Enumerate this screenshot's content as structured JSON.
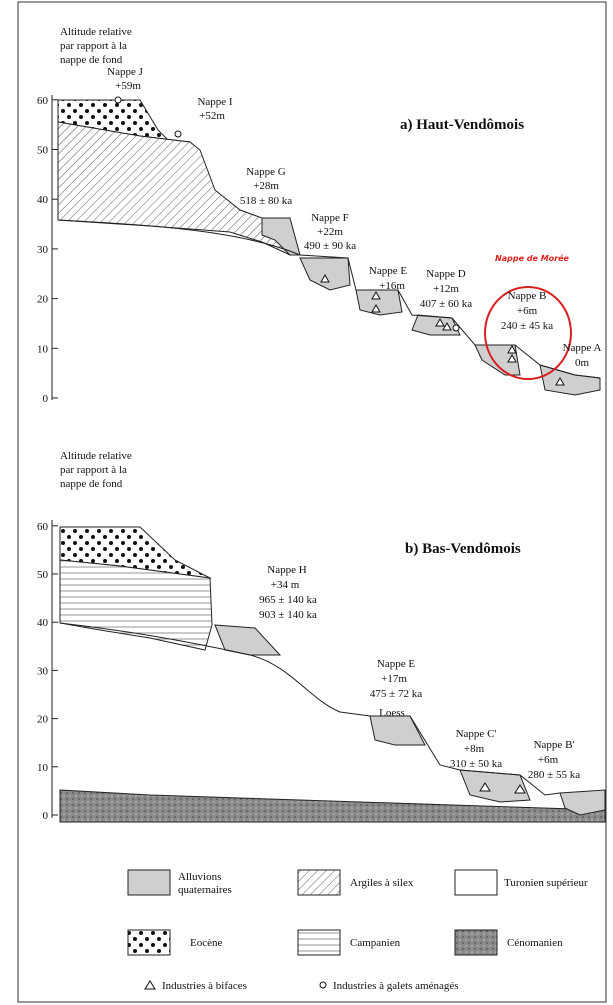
{
  "panels": [
    {
      "axis_label": [
        "Altitude relative",
        "par rapport à la",
        "nappe de fond"
      ],
      "title": "a) Haut-Vendômois",
      "yticks": [
        60,
        50,
        40,
        30,
        20,
        10,
        0
      ],
      "terraces": [
        {
          "name": "Nappe J",
          "lines": [
            "+59m"
          ]
        },
        {
          "name": "Nappe I",
          "lines": [
            "+52m"
          ]
        },
        {
          "name": "Nappe G",
          "lines": [
            "+28m",
            "518 ± 80 ka"
          ]
        },
        {
          "name": "Nappe F",
          "lines": [
            "+22m",
            "490 ± 90 ka"
          ]
        },
        {
          "name": "Nappe E",
          "lines": [
            "+16m"
          ]
        },
        {
          "name": "Nappe D",
          "lines": [
            "+12m",
            "407 ± 60 ka"
          ]
        },
        {
          "name": "Nappe B",
          "lines": [
            "+6m",
            "240 ± 45 ka"
          ]
        },
        {
          "name": "Nappe A",
          "lines": [
            "0m"
          ]
        }
      ],
      "note": "Nappe de Morée"
    },
    {
      "axis_label": [
        "Altitude relative",
        "par rapport à la",
        "nappe de fond"
      ],
      "title": "b) Bas-Vendômois",
      "yticks": [
        60,
        50,
        40,
        30,
        20,
        10,
        0
      ],
      "terraces": [
        {
          "name": "Nappe H",
          "lines": [
            "+34 m",
            "965 ± 140 ka",
            "903 ± 140 ka"
          ]
        },
        {
          "name": "Nappe E",
          "lines": [
            "+17m",
            "475 ± 72 ka"
          ]
        },
        {
          "name": "Nappe C'",
          "lines": [
            "+8m",
            "310 ± 50 ka"
          ]
        },
        {
          "name": "Nappe B'",
          "lines": [
            "+6m",
            "280 ± 55 ka"
          ]
        }
      ],
      "loess": "Loess"
    }
  ],
  "legend": [
    {
      "lines": [
        "Alluvions",
        "quaternaires"
      ]
    },
    {
      "lines": [
        "Argiles à silex"
      ]
    },
    {
      "lines": [
        "Turonien supérieur"
      ]
    },
    {
      "lines": [
        "Eocène"
      ]
    },
    {
      "lines": [
        "Campanien"
      ]
    },
    {
      "lines": [
        "Cénomanien"
      ]
    }
  ],
  "symbols": [
    "Industries à bifaces",
    "Industries à galets aménagés"
  ]
}
